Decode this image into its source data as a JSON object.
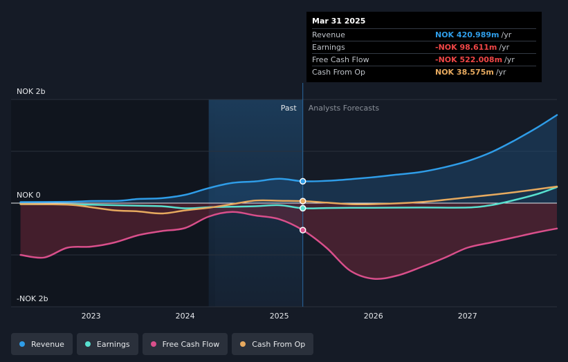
{
  "chart_data": {
    "type": "line",
    "x_unit": "year",
    "x_range": [
      2022.15,
      2027.95
    ],
    "y_range": [
      -2000,
      2000
    ],
    "y_unit": "NOK m",
    "y_tick_labels": [
      {
        "value": 2000,
        "label": "NOK 2b"
      },
      {
        "value": 0,
        "label": "NOK 0"
      },
      {
        "value": -2000,
        "label": "-NOK 2b"
      }
    ],
    "x_tick_labels": [
      {
        "value": 2023,
        "label": "2023"
      },
      {
        "value": 2024,
        "label": "2024"
      },
      {
        "value": 2025,
        "label": "2025"
      },
      {
        "value": 2026,
        "label": "2026"
      },
      {
        "value": 2027,
        "label": "2027"
      }
    ],
    "past_start": 2024.25,
    "divider": 2025.25,
    "past_label": "Past",
    "forecast_label": "Analysts Forecasts",
    "series": [
      {
        "name": "Revenue",
        "color": "#2f9de8",
        "fill": true,
        "points": [
          [
            2022.25,
            20
          ],
          [
            2022.75,
            25
          ],
          [
            2023.0,
            40
          ],
          [
            2023.3,
            45
          ],
          [
            2023.5,
            80
          ],
          [
            2023.75,
            95
          ],
          [
            2024.0,
            160
          ],
          [
            2024.25,
            290
          ],
          [
            2024.5,
            390
          ],
          [
            2024.75,
            420
          ],
          [
            2025.0,
            470
          ],
          [
            2025.25,
            421
          ],
          [
            2025.5,
            430
          ],
          [
            2025.75,
            460
          ],
          [
            2026.0,
            500
          ],
          [
            2026.25,
            550
          ],
          [
            2026.5,
            600
          ],
          [
            2026.75,
            690
          ],
          [
            2027.0,
            810
          ],
          [
            2027.25,
            980
          ],
          [
            2027.5,
            1210
          ],
          [
            2027.75,
            1470
          ],
          [
            2027.95,
            1700
          ]
        ]
      },
      {
        "name": "Earnings",
        "color": "#58e0cf",
        "fill": false,
        "points": [
          [
            2022.25,
            -20
          ],
          [
            2022.75,
            -25
          ],
          [
            2023.0,
            -30
          ],
          [
            2023.5,
            -50
          ],
          [
            2023.75,
            -60
          ],
          [
            2024.0,
            -100
          ],
          [
            2024.25,
            -80
          ],
          [
            2024.5,
            -70
          ],
          [
            2024.75,
            -60
          ],
          [
            2025.0,
            -40
          ],
          [
            2025.25,
            -98.6
          ],
          [
            2025.5,
            -95
          ],
          [
            2025.75,
            -90
          ],
          [
            2026.0,
            -90
          ],
          [
            2026.5,
            -85
          ],
          [
            2027.0,
            -85
          ],
          [
            2027.25,
            -40
          ],
          [
            2027.5,
            60
          ],
          [
            2027.75,
            180
          ],
          [
            2027.95,
            310
          ]
        ]
      },
      {
        "name": "Free Cash Flow",
        "color": "#d94f8b",
        "fill": true,
        "points": [
          [
            2022.25,
            -1000
          ],
          [
            2022.5,
            -1050
          ],
          [
            2022.75,
            -860
          ],
          [
            2023.0,
            -840
          ],
          [
            2023.25,
            -760
          ],
          [
            2023.5,
            -620
          ],
          [
            2023.75,
            -540
          ],
          [
            2024.0,
            -480
          ],
          [
            2024.25,
            -260
          ],
          [
            2024.5,
            -170
          ],
          [
            2024.75,
            -240
          ],
          [
            2025.0,
            -310
          ],
          [
            2025.25,
            -522
          ],
          [
            2025.5,
            -860
          ],
          [
            2025.75,
            -1300
          ],
          [
            2026.0,
            -1460
          ],
          [
            2026.25,
            -1400
          ],
          [
            2026.5,
            -1240
          ],
          [
            2026.75,
            -1060
          ],
          [
            2027.0,
            -860
          ],
          [
            2027.25,
            -760
          ],
          [
            2027.5,
            -660
          ],
          [
            2027.75,
            -560
          ],
          [
            2027.95,
            -490
          ]
        ]
      },
      {
        "name": "Cash From Op",
        "color": "#e7aa5f",
        "fill": false,
        "points": [
          [
            2022.25,
            -20
          ],
          [
            2022.75,
            -30
          ],
          [
            2023.0,
            -80
          ],
          [
            2023.25,
            -140
          ],
          [
            2023.5,
            -160
          ],
          [
            2023.75,
            -200
          ],
          [
            2024.0,
            -140
          ],
          [
            2024.25,
            -90
          ],
          [
            2024.5,
            -20
          ],
          [
            2024.75,
            50
          ],
          [
            2025.0,
            45
          ],
          [
            2025.25,
            38.6
          ],
          [
            2025.5,
            10
          ],
          [
            2025.75,
            -20
          ],
          [
            2026.0,
            -20
          ],
          [
            2026.5,
            20
          ],
          [
            2027.0,
            110
          ],
          [
            2027.5,
            210
          ],
          [
            2027.95,
            320
          ]
        ]
      }
    ]
  },
  "tooltip": {
    "date": "Mar 31 2025",
    "rows": [
      {
        "label": "Revenue",
        "value": "NOK 420.989m",
        "unit": "/yr",
        "color": "#2f9de8"
      },
      {
        "label": "Earnings",
        "value": "-NOK 98.611m",
        "unit": "/yr",
        "color": "#f04646"
      },
      {
        "label": "Free Cash Flow",
        "value": "-NOK 522.008m",
        "unit": "/yr",
        "color": "#f04646"
      },
      {
        "label": "Cash From Op",
        "value": "NOK 38.575m",
        "unit": "/yr",
        "color": "#e7aa5f"
      }
    ]
  },
  "legend": [
    {
      "label": "Revenue",
      "color": "#2f9de8"
    },
    {
      "label": "Earnings",
      "color": "#58e0cf"
    },
    {
      "label": "Free Cash Flow",
      "color": "#d94f8b"
    },
    {
      "label": "Cash From Op",
      "color": "#e7aa5f"
    }
  ]
}
